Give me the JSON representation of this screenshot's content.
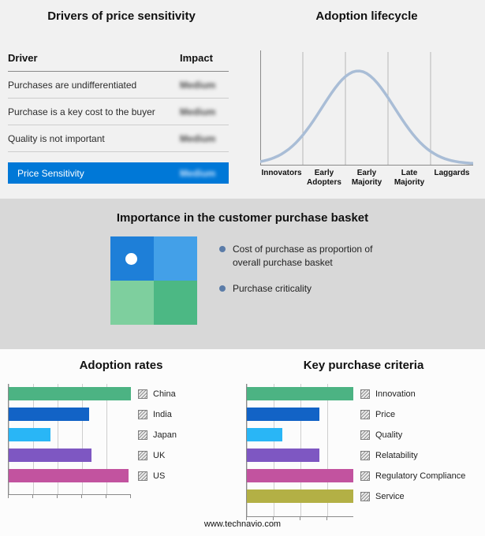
{
  "page": {
    "footer": "www.technavio.com"
  },
  "colors": {
    "highlight_blue": "#0078d7",
    "curve": "#a9bdd6",
    "grid": "#b8b8b8",
    "bullet": "#5b7ca8",
    "quadrant": {
      "top_left": "#1e7fd8",
      "top_right": "#43a0e8",
      "bottom_left": "#7ecf9e",
      "bottom_right": "#4cb884"
    }
  },
  "drivers": {
    "title": "Drivers of price sensitivity",
    "headers": {
      "driver": "Driver",
      "impact": "Impact"
    },
    "rows": [
      {
        "driver": "Purchases are undifferentiated",
        "impact": "Medium"
      },
      {
        "driver": "Purchase is a key cost to the buyer",
        "impact": "Medium"
      },
      {
        "driver": "Quality is not important",
        "impact": "Medium"
      }
    ],
    "highlight": {
      "driver": "Price Sensitivity",
      "impact": "Medium"
    }
  },
  "lifecycle": {
    "title": "Adoption lifecycle",
    "stages": [
      "Innovators",
      "Early Adopters",
      "Early Majority",
      "Late Majority",
      "Laggards"
    ]
  },
  "basket": {
    "title": "Importance in the customer purchase basket",
    "bullets": [
      "Cost of purchase as proportion of overall purchase basket",
      "Purchase criticality"
    ]
  },
  "adoption": {
    "title": "Adoption rates",
    "bars": [
      {
        "label": "China",
        "value": 100,
        "color": "#4cb383"
      },
      {
        "label": "India",
        "value": 66,
        "color": "#1263c6"
      },
      {
        "label": "Japan",
        "value": 34,
        "color": "#29b6f6"
      },
      {
        "label": "UK",
        "value": 68,
        "color": "#7e57c2"
      },
      {
        "label": "US",
        "value": 98,
        "color": "#c2539f"
      }
    ]
  },
  "criteria": {
    "title": "Key purchase criteria",
    "bars": [
      {
        "label": "Innovation",
        "value": 100,
        "color": "#4cb383"
      },
      {
        "label": "Price",
        "value": 68,
        "color": "#1263c6"
      },
      {
        "label": "Quality",
        "value": 33,
        "color": "#29b6f6"
      },
      {
        "label": "Relatability",
        "value": 68,
        "color": "#7e57c2"
      },
      {
        "label": "Regulatory Compliance",
        "value": 100,
        "color": "#c2539f"
      },
      {
        "label": "Service",
        "value": 100,
        "color": "#b3b045"
      }
    ]
  },
  "chart_data": [
    {
      "type": "line",
      "title": "Adoption lifecycle",
      "x": [
        "Innovators",
        "Early Adopters",
        "Early Majority",
        "Late Majority",
        "Laggards"
      ],
      "values": [
        5,
        48,
        100,
        55,
        6
      ],
      "xlabel": "",
      "ylabel": "",
      "grid": "vertical dividers between stages",
      "legend_position": "none"
    },
    {
      "type": "bar",
      "title": "Adoption rates",
      "orientation": "horizontal",
      "categories": [
        "China",
        "India",
        "Japan",
        "UK",
        "US"
      ],
      "values": [
        100,
        66,
        34,
        68,
        98
      ],
      "xlim": [
        0,
        100
      ],
      "grid": "vertical gridlines, unlabeled axis",
      "legend_position": "right"
    },
    {
      "type": "bar",
      "title": "Key purchase criteria",
      "orientation": "horizontal",
      "categories": [
        "Innovation",
        "Price",
        "Quality",
        "Relatability",
        "Regulatory Compliance",
        "Service"
      ],
      "values": [
        100,
        68,
        33,
        68,
        100,
        100
      ],
      "xlim": [
        0,
        100
      ],
      "grid": "vertical gridlines, unlabeled axis",
      "legend_position": "right"
    }
  ]
}
